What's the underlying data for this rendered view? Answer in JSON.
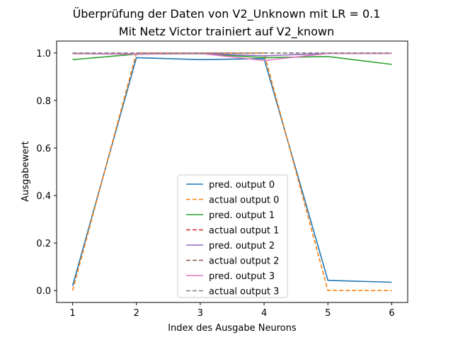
{
  "chart_data": {
    "type": "line",
    "title": "Überprüfung der Daten von V2_Unknown mit LR = 0.1",
    "subtitle": "Mit Netz Victor trainiert auf V2_known",
    "xlabel": "Index des Ausgabe Neurons",
    "ylabel": "Ausgabewert",
    "x": [
      1,
      2,
      3,
      4,
      5,
      6
    ],
    "xlim": [
      0.75,
      6.25
    ],
    "ylim": [
      -0.05,
      1.05
    ],
    "xticks": [
      "1",
      "2",
      "3",
      "4",
      "5",
      "6"
    ],
    "yticks": [
      "0.0",
      "0.2",
      "0.4",
      "0.6",
      "0.8",
      "1.0"
    ],
    "grid": false,
    "legend_position": "lower-center",
    "series": [
      {
        "name": "pred. output 0",
        "style": "solid",
        "color": "#1f77b4",
        "values": [
          0.02,
          0.98,
          0.972,
          0.976,
          0.043,
          0.035
        ]
      },
      {
        "name": "actual output 0",
        "style": "dashed",
        "color": "#ff7f0e",
        "values": [
          0.0,
          1.0,
          1.0,
          1.0,
          0.0,
          0.0
        ]
      },
      {
        "name": "pred. output 1",
        "style": "solid",
        "color": "#2ca02c",
        "values": [
          0.972,
          0.995,
          0.997,
          0.98,
          0.985,
          0.952
        ]
      },
      {
        "name": "actual output 1",
        "style": "dashed",
        "color": "#d62728",
        "values": [
          1.0,
          1.0,
          1.0,
          1.0,
          1.0,
          1.0
        ]
      },
      {
        "name": "pred. output 2",
        "style": "solid",
        "color": "#9467bd",
        "values": [
          0.997,
          0.995,
          0.998,
          0.988,
          0.998,
          0.998
        ]
      },
      {
        "name": "actual output 2",
        "style": "dashed",
        "color": "#8c564b",
        "values": [
          1.0,
          1.0,
          1.0,
          1.0,
          1.0,
          1.0
        ]
      },
      {
        "name": "pred. output 3",
        "style": "solid",
        "color": "#e377c2",
        "values": [
          0.998,
          0.996,
          0.998,
          0.968,
          0.998,
          0.998
        ]
      },
      {
        "name": "actual output 3",
        "style": "dashed",
        "color": "#7f7f7f",
        "values": [
          1.0,
          1.0,
          1.0,
          1.0,
          1.0,
          1.0
        ]
      }
    ]
  }
}
